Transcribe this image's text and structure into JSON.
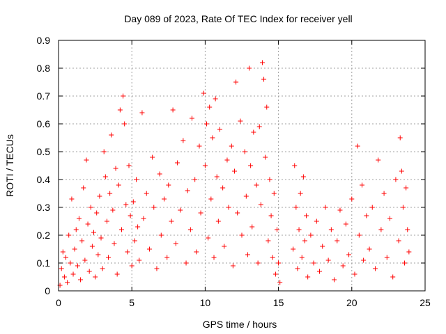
{
  "chart_data": {
    "type": "scatter",
    "title": "Day 089 of 2023, Rate Of TEC Index for receiver yell",
    "xlabel": "GPS time / hours",
    "ylabel": "ROTI / TECUs",
    "xlim": [
      0,
      25
    ],
    "ylim": [
      0,
      0.9
    ],
    "x_ticks": [
      "0",
      "5",
      "10",
      "15",
      "20",
      "25"
    ],
    "y_ticks": [
      "0",
      "0.1",
      "0.2",
      "0.3",
      "0.4",
      "0.5",
      "0.6",
      "0.7",
      "0.8",
      "0.9"
    ],
    "grid": true,
    "marker": "plus",
    "point_color": "#ff0000",
    "series": [
      {
        "points": [
          [
            0.1,
            0.02
          ],
          [
            0.2,
            0.08
          ],
          [
            0.3,
            0.14
          ],
          [
            0.4,
            0.05
          ],
          [
            0.5,
            0.12
          ],
          [
            0.6,
            0.03
          ],
          [
            0.7,
            0.2
          ],
          [
            0.8,
            0.1
          ],
          [
            0.9,
            0.33
          ],
          [
            1.0,
            0.06
          ],
          [
            1.1,
            0.15
          ],
          [
            1.2,
            0.22
          ],
          [
            1.3,
            0.09
          ],
          [
            1.4,
            0.26
          ],
          [
            1.5,
            0.04
          ],
          [
            1.6,
            0.18
          ],
          [
            1.7,
            0.37
          ],
          [
            1.8,
            0.11
          ],
          [
            1.9,
            0.47
          ],
          [
            2.0,
            0.24
          ],
          [
            2.1,
            0.07
          ],
          [
            2.2,
            0.3
          ],
          [
            2.3,
            0.16
          ],
          [
            2.4,
            0.21
          ],
          [
            2.5,
            0.05
          ],
          [
            2.6,
            0.28
          ],
          [
            2.7,
            0.13
          ],
          [
            2.8,
            0.34
          ],
          [
            2.9,
            0.19
          ],
          [
            3.0,
            0.08
          ],
          [
            3.1,
            0.5
          ],
          [
            3.2,
            0.41
          ],
          [
            3.3,
            0.25
          ],
          [
            3.4,
            0.12
          ],
          [
            3.5,
            0.35
          ],
          [
            3.6,
            0.56
          ],
          [
            3.7,
            0.29
          ],
          [
            3.8,
            0.17
          ],
          [
            3.9,
            0.44
          ],
          [
            4.0,
            0.06
          ],
          [
            4.1,
            0.38
          ],
          [
            4.2,
            0.65
          ],
          [
            4.3,
            0.22
          ],
          [
            4.4,
            0.7
          ],
          [
            4.5,
            0.6
          ],
          [
            4.6,
            0.31
          ],
          [
            4.7,
            0.14
          ],
          [
            4.8,
            0.45
          ],
          [
            4.9,
            0.27
          ],
          [
            5.0,
            0.09
          ],
          [
            5.1,
            0.32
          ],
          [
            5.2,
            0.18
          ],
          [
            5.3,
            0.4
          ],
          [
            5.4,
            0.23
          ],
          [
            5.5,
            0.11
          ],
          [
            5.7,
            0.64
          ],
          [
            5.8,
            0.26
          ],
          [
            6.0,
            0.35
          ],
          [
            6.2,
            0.15
          ],
          [
            6.4,
            0.48
          ],
          [
            6.5,
            0.3
          ],
          [
            6.7,
            0.08
          ],
          [
            6.9,
            0.42
          ],
          [
            7.0,
            0.2
          ],
          [
            7.2,
            0.33
          ],
          [
            7.4,
            0.12
          ],
          [
            7.5,
            0.38
          ],
          [
            7.7,
            0.25
          ],
          [
            7.8,
            0.65
          ],
          [
            8.0,
            0.17
          ],
          [
            8.1,
            0.46
          ],
          [
            8.3,
            0.29
          ],
          [
            8.5,
            0.54
          ],
          [
            8.7,
            0.1
          ],
          [
            8.8,
            0.36
          ],
          [
            9.0,
            0.22
          ],
          [
            9.1,
            0.62
          ],
          [
            9.3,
            0.4
          ],
          [
            9.4,
            0.14
          ],
          [
            9.6,
            0.52
          ],
          [
            9.7,
            0.28
          ],
          [
            9.9,
            0.71
          ],
          [
            10.0,
            0.45
          ],
          [
            10.1,
            0.6
          ],
          [
            10.2,
            0.19
          ],
          [
            10.3,
            0.66
          ],
          [
            10.4,
            0.33
          ],
          [
            10.5,
            0.55
          ],
          [
            10.6,
            0.12
          ],
          [
            10.7,
            0.69
          ],
          [
            10.8,
            0.41
          ],
          [
            10.9,
            0.25
          ],
          [
            11.0,
            0.58
          ],
          [
            11.2,
            0.37
          ],
          [
            11.3,
            0.16
          ],
          [
            11.5,
            0.47
          ],
          [
            11.6,
            0.3
          ],
          [
            11.8,
            0.52
          ],
          [
            11.9,
            0.09
          ],
          [
            12.0,
            0.43
          ],
          [
            12.1,
            0.75
          ],
          [
            12.2,
            0.28
          ],
          [
            12.4,
            0.61
          ],
          [
            12.5,
            0.2
          ],
          [
            12.7,
            0.5
          ],
          [
            12.8,
            0.34
          ],
          [
            12.9,
            0.13
          ],
          [
            13.0,
            0.8
          ],
          [
            13.1,
            0.45
          ],
          [
            13.2,
            0.23
          ],
          [
            13.3,
            0.57
          ],
          [
            13.5,
            0.38
          ],
          [
            13.6,
            0.1
          ],
          [
            13.7,
            0.59
          ],
          [
            13.8,
            0.31
          ],
          [
            13.9,
            0.82
          ],
          [
            14.0,
            0.76
          ],
          [
            14.1,
            0.48
          ],
          [
            14.2,
            0.66
          ],
          [
            14.3,
            0.18
          ],
          [
            14.4,
            0.4
          ],
          [
            14.5,
            0.27
          ],
          [
            14.6,
            0.12
          ],
          [
            14.7,
            0.35
          ],
          [
            14.8,
            0.06
          ],
          [
            14.9,
            0.22
          ],
          [
            15.0,
            0.1
          ],
          [
            15.1,
            0.03
          ],
          [
            16.0,
            0.15
          ],
          [
            16.1,
            0.45
          ],
          [
            16.2,
            0.3
          ],
          [
            16.3,
            0.08
          ],
          [
            16.4,
            0.22
          ],
          [
            16.5,
            0.35
          ],
          [
            16.6,
            0.12
          ],
          [
            16.7,
            0.41
          ],
          [
            16.8,
            0.18
          ],
          [
            16.9,
            0.27
          ],
          [
            17.0,
            0.05
          ],
          [
            17.2,
            0.2
          ],
          [
            17.4,
            0.1
          ],
          [
            17.6,
            0.25
          ],
          [
            17.8,
            0.07
          ],
          [
            18.0,
            0.16
          ],
          [
            18.2,
            0.3
          ],
          [
            18.4,
            0.11
          ],
          [
            18.6,
            0.22
          ],
          [
            18.8,
            0.04
          ],
          [
            19.0,
            0.18
          ],
          [
            19.2,
            0.29
          ],
          [
            19.4,
            0.09
          ],
          [
            19.6,
            0.24
          ],
          [
            19.8,
            0.13
          ],
          [
            20.0,
            0.33
          ],
          [
            20.2,
            0.06
          ],
          [
            20.4,
            0.52
          ],
          [
            20.5,
            0.2
          ],
          [
            20.7,
            0.38
          ],
          [
            20.8,
            0.11
          ],
          [
            21.0,
            0.27
          ],
          [
            21.2,
            0.15
          ],
          [
            21.4,
            0.3
          ],
          [
            21.6,
            0.08
          ],
          [
            21.8,
            0.47
          ],
          [
            22.0,
            0.22
          ],
          [
            22.2,
            0.35
          ],
          [
            22.4,
            0.12
          ],
          [
            22.6,
            0.26
          ],
          [
            22.8,
            0.05
          ],
          [
            23.0,
            0.4
          ],
          [
            23.2,
            0.18
          ],
          [
            23.3,
            0.55
          ],
          [
            23.4,
            0.43
          ],
          [
            23.5,
            0.3
          ],
          [
            23.6,
            0.1
          ],
          [
            23.7,
            0.37
          ],
          [
            23.8,
            0.22
          ],
          [
            23.9,
            0.14
          ]
        ]
      }
    ]
  }
}
